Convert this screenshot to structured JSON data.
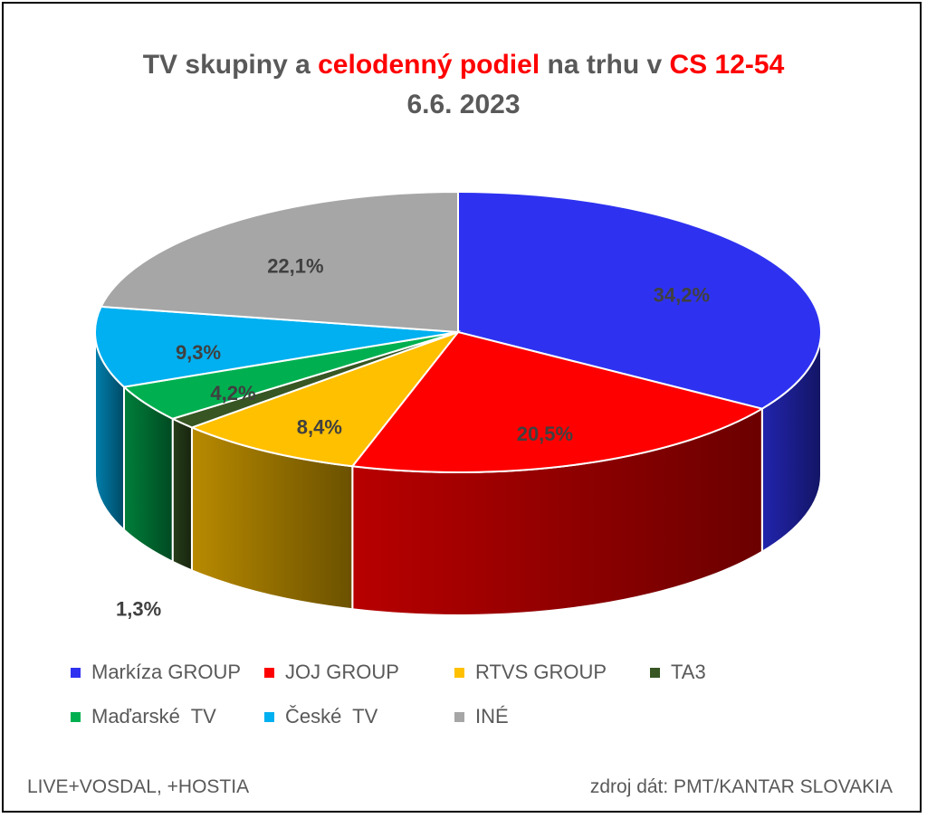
{
  "title": {
    "line1_a": "TV skupiny a ",
    "line1_b": "celodenný podiel",
    "line1_c": " na trhu v ",
    "line1_d": "CS 12-54",
    "line2": "6.6. 2023"
  },
  "chart_data": {
    "type": "pie",
    "style": "3d",
    "categories": [
      "Markíza GROUP",
      "JOJ GROUP",
      "RTVS GROUP",
      "TA3",
      "Maďarské  TV",
      "České  TV",
      "INÉ"
    ],
    "values": [
      34.2,
      20.5,
      8.4,
      1.3,
      4.2,
      9.3,
      22.1
    ],
    "labels": [
      "34,2%",
      "20,5%",
      "8,4%",
      "1,3%",
      "4,2%",
      "9,3%",
      "22,1%"
    ],
    "colors": [
      "#2e32f0",
      "#ff0000",
      "#ffc000",
      "#375623",
      "#00b050",
      "#00b0f0",
      "#a6a6a6"
    ],
    "legend_position": "bottom"
  },
  "footer": {
    "left": "LIVE+VOSDAL, +HOSTIA",
    "right": "zdroj dát: PMT/KANTAR SLOVAKIA"
  }
}
